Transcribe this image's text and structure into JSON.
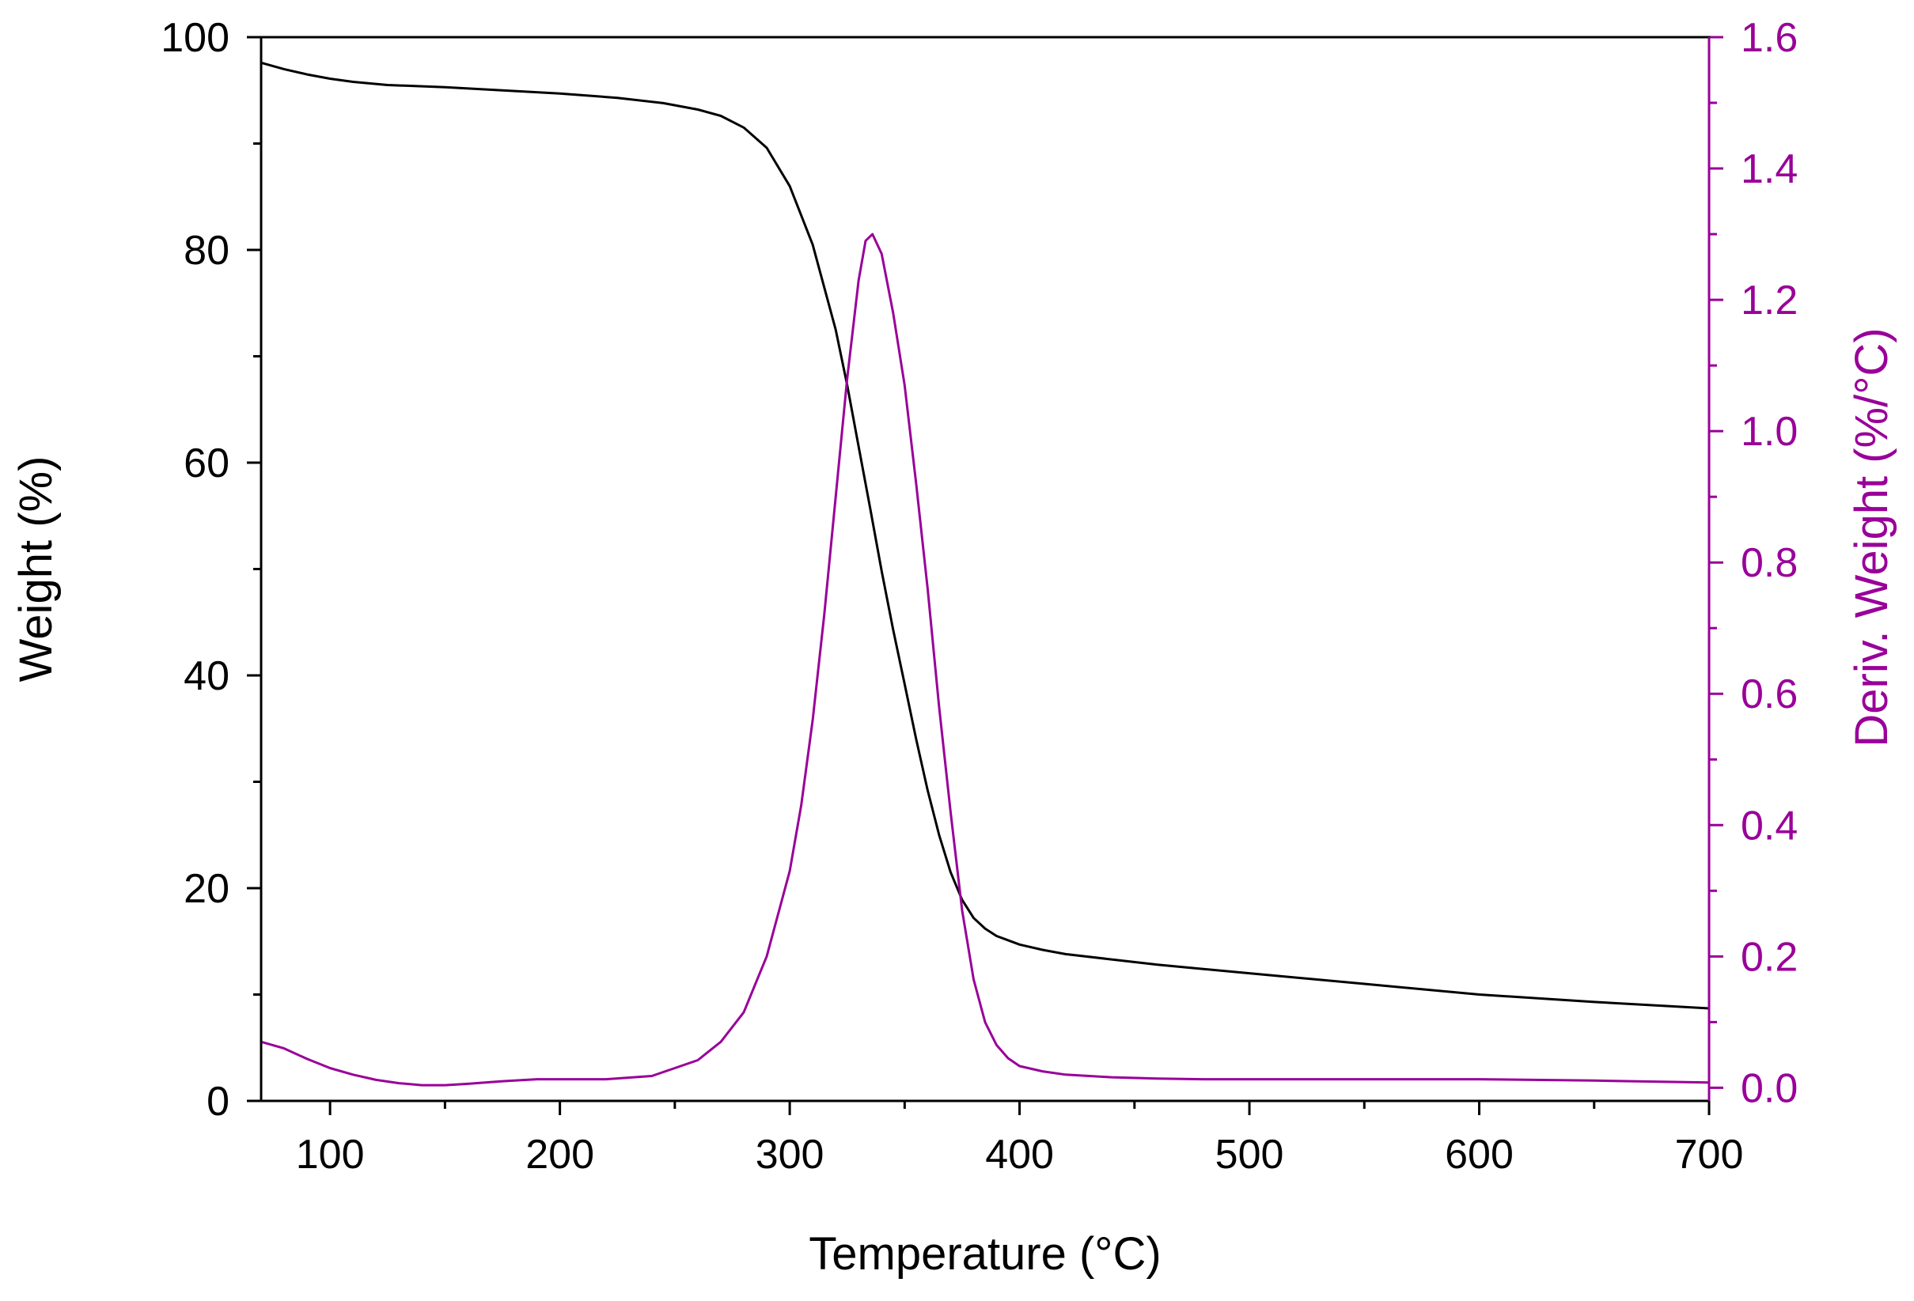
{
  "chart_data": {
    "type": "line",
    "title": "",
    "xlabel": "Temperature (°C)",
    "ylabel_left": "Weight (%)",
    "ylabel_right": "Deriv. Weight (%/°C)",
    "xlim": [
      70,
      700
    ],
    "ylim_left": [
      0,
      100
    ],
    "ylim_right": [
      -0.02,
      1.6
    ],
    "x_ticks": [
      100,
      200,
      300,
      400,
      500,
      600,
      700
    ],
    "y_left_ticks": [
      0,
      20,
      40,
      60,
      80,
      100
    ],
    "y_right_ticks": [
      0.0,
      0.2,
      0.4,
      0.6,
      0.8,
      1.0,
      1.2,
      1.4,
      1.6
    ],
    "y_right_tick_labels": [
      "0.0",
      "0.2",
      "0.4",
      "0.6",
      "0.8",
      "1.0",
      "1.2",
      "1.4",
      "1.6"
    ],
    "grid": false,
    "legend": "none",
    "colors": {
      "weight": "#000000",
      "deriv": "#990099",
      "axes": "#000000"
    },
    "series": [
      {
        "axis": "left",
        "color": "#000000",
        "x": [
          70,
          80,
          90,
          100,
          110,
          125,
          150,
          175,
          200,
          225,
          245,
          260,
          270,
          280,
          290,
          300,
          310,
          320,
          325,
          330,
          335,
          340,
          345,
          350,
          355,
          360,
          365,
          370,
          375,
          380,
          385,
          390,
          400,
          410,
          420,
          440,
          460,
          480,
          500,
          550,
          600,
          650,
          700
        ],
        "y": [
          97.6,
          97.0,
          96.5,
          96.1,
          95.8,
          95.5,
          95.3,
          95.0,
          94.7,
          94.3,
          93.8,
          93.2,
          92.6,
          91.5,
          89.6,
          86.0,
          80.5,
          72.5,
          67.3,
          61.5,
          55.7,
          49.8,
          44.3,
          39.2,
          34.0,
          29.2,
          25.0,
          21.5,
          18.9,
          17.2,
          16.2,
          15.5,
          14.7,
          14.2,
          13.8,
          13.3,
          12.8,
          12.4,
          12.0,
          11.0,
          10.0,
          9.3,
          8.7
        ]
      },
      {
        "axis": "right",
        "color": "#990099",
        "x": [
          70,
          80,
          90,
          100,
          110,
          120,
          130,
          140,
          150,
          160,
          175,
          190,
          200,
          220,
          240,
          250,
          260,
          270,
          280,
          290,
          300,
          305,
          310,
          315,
          320,
          325,
          330,
          333,
          336,
          340,
          345,
          350,
          355,
          360,
          365,
          370,
          375,
          380,
          385,
          390,
          395,
          400,
          410,
          420,
          440,
          460,
          480,
          500,
          550,
          600,
          650,
          700
        ],
        "y": [
          0.07,
          0.06,
          0.044,
          0.03,
          0.02,
          0.012,
          0.007,
          0.004,
          0.004,
          0.006,
          0.01,
          0.013,
          0.013,
          0.013,
          0.018,
          0.03,
          0.042,
          0.07,
          0.115,
          0.2,
          0.33,
          0.43,
          0.56,
          0.72,
          0.9,
          1.08,
          1.23,
          1.29,
          1.3,
          1.27,
          1.18,
          1.07,
          0.92,
          0.76,
          0.58,
          0.42,
          0.27,
          0.165,
          0.1,
          0.065,
          0.045,
          0.033,
          0.025,
          0.02,
          0.016,
          0.014,
          0.013,
          0.013,
          0.013,
          0.013,
          0.011,
          0.008
        ]
      }
    ]
  }
}
